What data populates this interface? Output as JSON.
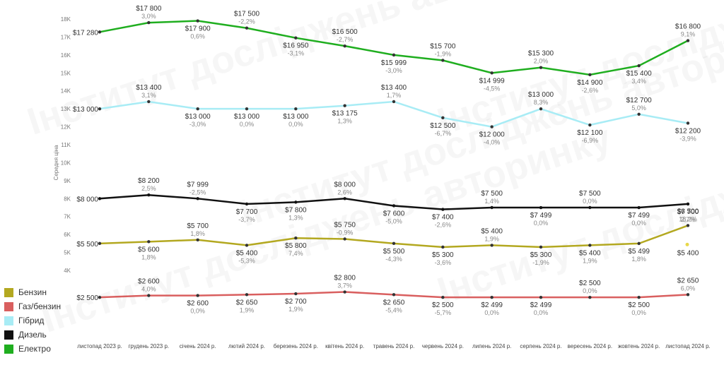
{
  "chart_data": {
    "type": "line",
    "ylabel": "Середня ціна",
    "ylim": [
      3000,
      18500
    ],
    "yticks": [
      {
        "v": 4000,
        "label": "4K"
      },
      {
        "v": 5000,
        "label": "5K"
      },
      {
        "v": 6000,
        "label": "6K"
      },
      {
        "v": 7000,
        "label": "7K"
      },
      {
        "v": 8000,
        "label": "8K"
      },
      {
        "v": 9000,
        "label": "9K"
      },
      {
        "v": 10000,
        "label": "10K"
      },
      {
        "v": 11000,
        "label": "11K"
      },
      {
        "v": 12000,
        "label": "12K"
      },
      {
        "v": 13000,
        "label": "13K"
      },
      {
        "v": 14000,
        "label": "14K"
      },
      {
        "v": 15000,
        "label": "15K"
      },
      {
        "v": 16000,
        "label": "16K"
      },
      {
        "v": 17000,
        "label": "17K"
      },
      {
        "v": 18000,
        "label": "18K"
      }
    ],
    "categories": [
      "листопад 2023 р.",
      "грудень 2023 р.",
      "січень 2024 р.",
      "лютий 2024 р.",
      "березень 2024 р.",
      "квітень 2024 р.",
      "травень 2024 р.",
      "червень 2024 р.",
      "липень 2024 р.",
      "серпень 2024 р.",
      "вересень 2024 р.",
      "жовтень 2024 р.",
      "листопад 2024 р."
    ],
    "series": [
      {
        "name": "Бензин",
        "color": "#b3a820",
        "values": [
          5500,
          5600,
          5700,
          5400,
          5800,
          5750,
          5500,
          5300,
          5400,
          5300,
          5400,
          5499,
          6500
        ],
        "labels": [
          "$5 500",
          "$5 600",
          "$5 700",
          "$5 400",
          "$5 800",
          "$5 750",
          "$5 500",
          "$5 300",
          "$5 400",
          "$5 300",
          "$5 400",
          "$5 499",
          "$6 500"
        ],
        "pct": [
          "",
          "1,8%",
          "1,8%",
          "-5,3%",
          "7,4%",
          "-0,9%",
          "-4,3%",
          "-3,6%",
          "1,9%",
          "-1,9%",
          "1,9%",
          "1,8%",
          "18,2%"
        ],
        "pos": [
          "l",
          "b",
          "a",
          "b",
          "b",
          "a",
          "b",
          "b",
          "a",
          "b",
          "b",
          "b",
          "a"
        ]
      },
      {
        "name": "Газ/бензин",
        "color": "#d95f5f",
        "values": [
          2500,
          2600,
          2600,
          2650,
          2700,
          2800,
          2650,
          2500,
          2499,
          2499,
          2500,
          2500,
          2650
        ],
        "labels": [
          "$2 500",
          "$2 600",
          "$2 600",
          "$2 650",
          "$2 700",
          "$2 800",
          "$2 650",
          "$2 500",
          "$2 499",
          "$2 499",
          "$2 500",
          "$2 500",
          "$2 650"
        ],
        "pct": [
          "",
          "4,0%",
          "0,0%",
          "1,9%",
          "1,9%",
          "3,7%",
          "-5,4%",
          "-5,7%",
          "0,0%",
          "0,0%",
          "0,0%",
          "0,0%",
          "6,0%"
        ],
        "pos": [
          "l",
          "a",
          "b",
          "b",
          "b",
          "a",
          "b",
          "b",
          "b",
          "b",
          "a",
          "b",
          "a"
        ]
      },
      {
        "name": "Гібрид",
        "color": "#a8ecf5",
        "values": [
          13000,
          13400,
          13000,
          13000,
          13000,
          13175,
          13400,
          12500,
          12000,
          13000,
          12100,
          12700,
          12200
        ],
        "labels": [
          "$13 000",
          "$13 400",
          "$13 000",
          "$13 000",
          "$13 000",
          "$13 175",
          "$13 400",
          "$12 500",
          "$12 000",
          "$13 000",
          "$12 100",
          "$12 700",
          "$12 200"
        ],
        "pct": [
          "",
          "3,1%",
          "-3,0%",
          "0,0%",
          "0,0%",
          "1,3%",
          "1,7%",
          "-6,7%",
          "-4,0%",
          "8,3%",
          "-6,9%",
          "5,0%",
          "-3,9%"
        ],
        "pos": [
          "l",
          "a",
          "b",
          "b",
          "b",
          "b",
          "a",
          "b",
          "b",
          "a",
          "b",
          "a",
          "b"
        ]
      },
      {
        "name": "Дизель",
        "color": "#111111",
        "values": [
          8000,
          8200,
          7999,
          7700,
          7800,
          8000,
          7600,
          7400,
          7500,
          7499,
          7500,
          7499,
          7700
        ],
        "labels": [
          "$8 000",
          "$8 200",
          "$7 999",
          "$7 700",
          "$7 800",
          "$8 000",
          "$7 600",
          "$7 400",
          "$7 500",
          "$7 499",
          "$7 500",
          "$7 499",
          "$7 700"
        ],
        "pct": [
          "",
          "2,5%",
          "-2,5%",
          "-3,7%",
          "1,3%",
          "2,6%",
          "-5,0%",
          "-2,6%",
          "1,4%",
          "0,0%",
          "0,0%",
          "0,0%",
          "2,7%"
        ],
        "pos": [
          "l",
          "a",
          "a",
          "b",
          "b",
          "a",
          "b",
          "b",
          "a",
          "b",
          "a",
          "b",
          "b"
        ]
      },
      {
        "name": "Електро",
        "color": "#1fae1f",
        "values": [
          17280,
          17800,
          17900,
          17500,
          16950,
          16500,
          15999,
          15700,
          14999,
          15300,
          14900,
          15400,
          16800
        ],
        "labels": [
          "$17 280",
          "$17 800",
          "$17 900",
          "$17 500",
          "$16 950",
          "$16 500",
          "$15 999",
          "$15 700",
          "$14 999",
          "$15 300",
          "$14 900",
          "$15 400",
          "$16 800"
        ],
        "pct": [
          "",
          "3,0%",
          "0,6%",
          "-2,2%",
          "-3,1%",
          "-2,7%",
          "-3,0%",
          "-1,9%",
          "-4,5%",
          "2,0%",
          "-2,6%",
          "3,4%",
          "9,1%"
        ],
        "pos": [
          "l",
          "a",
          "b",
          "a",
          "b",
          "a",
          "b",
          "a",
          "b",
          "a",
          "b",
          "b",
          "a"
        ]
      }
    ],
    "extra_point": {
      "label": "$5 400",
      "value": 5400,
      "color": "#e8d84a"
    }
  },
  "legend": [
    {
      "name": "Бензин",
      "color": "#b3a820"
    },
    {
      "name": "Газ/бензин",
      "color": "#d95f5f"
    },
    {
      "name": "Гібрид",
      "color": "#a8ecf5"
    },
    {
      "name": "Дизель",
      "color": "#111111"
    },
    {
      "name": "Електро",
      "color": "#1fae1f"
    }
  ],
  "watermark": "Інститут досліджень авторинку"
}
